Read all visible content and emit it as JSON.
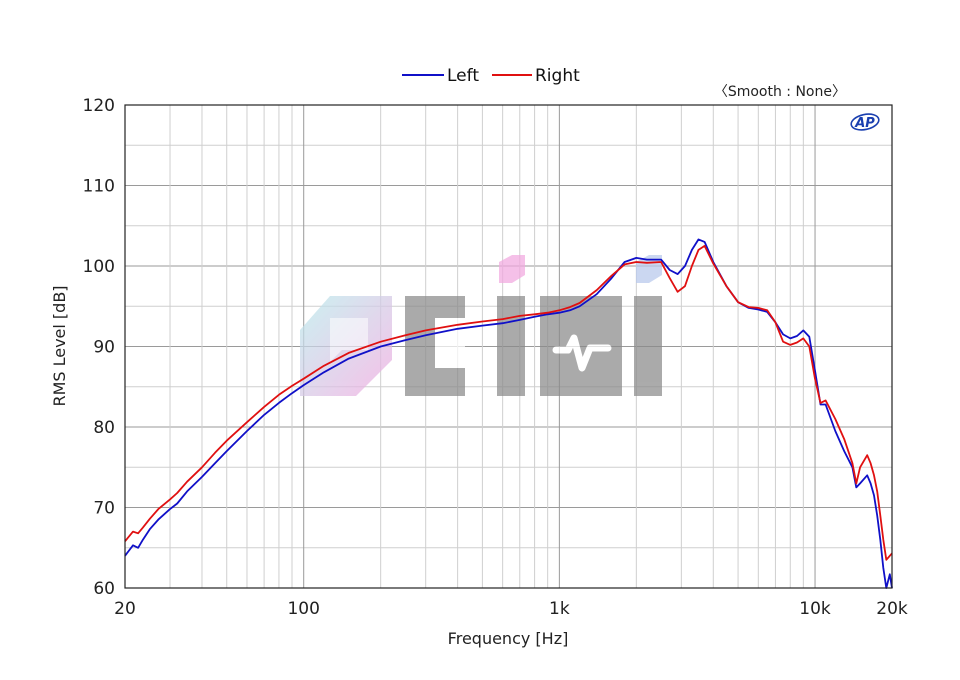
{
  "chart_data": {
    "type": "line",
    "title": "",
    "xlabel": "Frequency [Hz]",
    "ylabel": "RMS Level [dB]",
    "xscale": "log",
    "xlim": [
      20,
      20000
    ],
    "ylim": [
      60,
      120
    ],
    "x_ticks": [
      {
        "value": 20,
        "label": "20"
      },
      {
        "value": 100,
        "label": "100"
      },
      {
        "value": 1000,
        "label": "1k"
      },
      {
        "value": 10000,
        "label": "10k"
      },
      {
        "value": 20000,
        "label": "20k"
      }
    ],
    "y_ticks": [
      60,
      70,
      80,
      90,
      100,
      110,
      120
    ],
    "grid": true,
    "legend": {
      "placement": "top-center"
    },
    "annotation": "〈Smooth : None〉",
    "series": [
      {
        "name": "Left",
        "color": "#1010c8",
        "points": [
          [
            20,
            64.0
          ],
          [
            21.5,
            65.3
          ],
          [
            22.5,
            65.0
          ],
          [
            23.5,
            66.0
          ],
          [
            25,
            67.3
          ],
          [
            27,
            68.5
          ],
          [
            30,
            69.8
          ],
          [
            32,
            70.5
          ],
          [
            35,
            72.0
          ],
          [
            40,
            73.8
          ],
          [
            45,
            75.5
          ],
          [
            50,
            77.0
          ],
          [
            60,
            79.5
          ],
          [
            70,
            81.5
          ],
          [
            80,
            83.0
          ],
          [
            90,
            84.2
          ],
          [
            100,
            85.2
          ],
          [
            120,
            86.8
          ],
          [
            150,
            88.5
          ],
          [
            200,
            90.0
          ],
          [
            250,
            90.8
          ],
          [
            300,
            91.4
          ],
          [
            400,
            92.2
          ],
          [
            500,
            92.6
          ],
          [
            600,
            92.9
          ],
          [
            700,
            93.3
          ],
          [
            800,
            93.7
          ],
          [
            900,
            94.0
          ],
          [
            1000,
            94.2
          ],
          [
            1100,
            94.5
          ],
          [
            1200,
            95.0
          ],
          [
            1400,
            96.5
          ],
          [
            1600,
            98.5
          ],
          [
            1800,
            100.5
          ],
          [
            2000,
            101.0
          ],
          [
            2200,
            100.8
          ],
          [
            2500,
            100.8
          ],
          [
            2700,
            99.5
          ],
          [
            2900,
            99.0
          ],
          [
            3100,
            100.0
          ],
          [
            3300,
            102.0
          ],
          [
            3500,
            103.3
          ],
          [
            3700,
            103.0
          ],
          [
            4000,
            100.5
          ],
          [
            4500,
            97.5
          ],
          [
            5000,
            95.5
          ],
          [
            5500,
            94.8
          ],
          [
            6000,
            94.6
          ],
          [
            6500,
            94.3
          ],
          [
            7000,
            93.0
          ],
          [
            7500,
            91.5
          ],
          [
            8000,
            91.0
          ],
          [
            8500,
            91.3
          ],
          [
            9000,
            92.0
          ],
          [
            9500,
            91.2
          ],
          [
            10000,
            87.0
          ],
          [
            10500,
            82.8
          ],
          [
            11000,
            82.8
          ],
          [
            12000,
            79.5
          ],
          [
            13000,
            77.0
          ],
          [
            14000,
            75.0
          ],
          [
            14500,
            72.5
          ],
          [
            15000,
            73.0
          ],
          [
            16000,
            74.0
          ],
          [
            16500,
            73.0
          ],
          [
            17000,
            71.5
          ],
          [
            17500,
            69.0
          ],
          [
            18000,
            66.0
          ],
          [
            18500,
            62.5
          ],
          [
            19000,
            60.0
          ],
          [
            19600,
            61.7
          ],
          [
            20000,
            60.0
          ]
        ]
      },
      {
        "name": "Right",
        "color": "#e01010",
        "points": [
          [
            20,
            65.8
          ],
          [
            21.5,
            67.0
          ],
          [
            22.5,
            66.8
          ],
          [
            23.5,
            67.5
          ],
          [
            25,
            68.6
          ],
          [
            27,
            69.8
          ],
          [
            30,
            71.0
          ],
          [
            32,
            71.8
          ],
          [
            35,
            73.2
          ],
          [
            40,
            75.0
          ],
          [
            45,
            76.8
          ],
          [
            50,
            78.3
          ],
          [
            60,
            80.6
          ],
          [
            70,
            82.5
          ],
          [
            80,
            84.0
          ],
          [
            90,
            85.1
          ],
          [
            100,
            86.0
          ],
          [
            120,
            87.6
          ],
          [
            150,
            89.2
          ],
          [
            200,
            90.6
          ],
          [
            250,
            91.4
          ],
          [
            300,
            92.0
          ],
          [
            400,
            92.7
          ],
          [
            500,
            93.1
          ],
          [
            600,
            93.4
          ],
          [
            700,
            93.8
          ],
          [
            800,
            94.0
          ],
          [
            900,
            94.2
          ],
          [
            1000,
            94.5
          ],
          [
            1100,
            94.9
          ],
          [
            1200,
            95.4
          ],
          [
            1400,
            97.0
          ],
          [
            1600,
            98.8
          ],
          [
            1800,
            100.2
          ],
          [
            2000,
            100.5
          ],
          [
            2200,
            100.4
          ],
          [
            2500,
            100.5
          ],
          [
            2700,
            98.5
          ],
          [
            2900,
            96.8
          ],
          [
            3100,
            97.5
          ],
          [
            3300,
            100.0
          ],
          [
            3500,
            102.0
          ],
          [
            3700,
            102.5
          ],
          [
            4000,
            100.3
          ],
          [
            4500,
            97.5
          ],
          [
            5000,
            95.5
          ],
          [
            5500,
            94.9
          ],
          [
            6000,
            94.8
          ],
          [
            6500,
            94.5
          ],
          [
            7000,
            93.0
          ],
          [
            7500,
            90.6
          ],
          [
            8000,
            90.2
          ],
          [
            8500,
            90.5
          ],
          [
            9000,
            91.0
          ],
          [
            9500,
            90.0
          ],
          [
            10000,
            86.0
          ],
          [
            10500,
            83.0
          ],
          [
            11000,
            83.3
          ],
          [
            12000,
            81.0
          ],
          [
            13000,
            78.5
          ],
          [
            14000,
            75.5
          ],
          [
            14500,
            73.0
          ],
          [
            15000,
            75.0
          ],
          [
            16000,
            76.5
          ],
          [
            16500,
            75.5
          ],
          [
            17000,
            74.0
          ],
          [
            17500,
            72.0
          ],
          [
            18000,
            69.0
          ],
          [
            18500,
            66.0
          ],
          [
            19000,
            63.5
          ],
          [
            19600,
            64.0
          ],
          [
            20000,
            64.3
          ]
        ]
      }
    ]
  },
  "watermark": {
    "colors": {
      "pink": "#f2a8e0",
      "cyan": "#b8ecec",
      "gray": "#7a7a7a"
    }
  },
  "logo_icon": "ap-logo-icon",
  "logo_text": "AP"
}
